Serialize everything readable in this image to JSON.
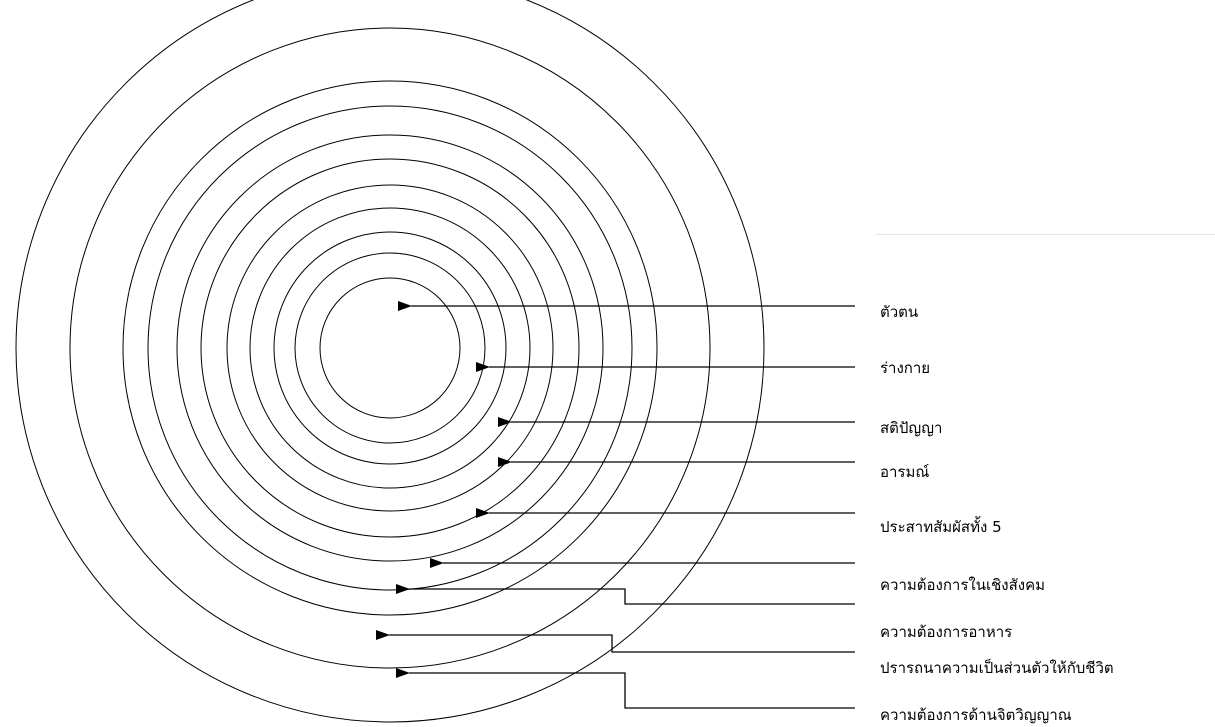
{
  "colors": {
    "background": "#ffffff",
    "line": "#000000"
  },
  "labels": [
    "ตัวตน",
    "ร่างกาย",
    "สติปัญญา",
    "อารมณ์",
    "ประสาทสัมผัสทั้ง 5",
    "ความต้องการในเชิงสังคม",
    "ความต้องการอาหาร",
    "ปรารถนาความเป็นส่วนตัวให้กับชีวิต",
    "ความต้องการด้านจิตวิญญาณ"
  ]
}
